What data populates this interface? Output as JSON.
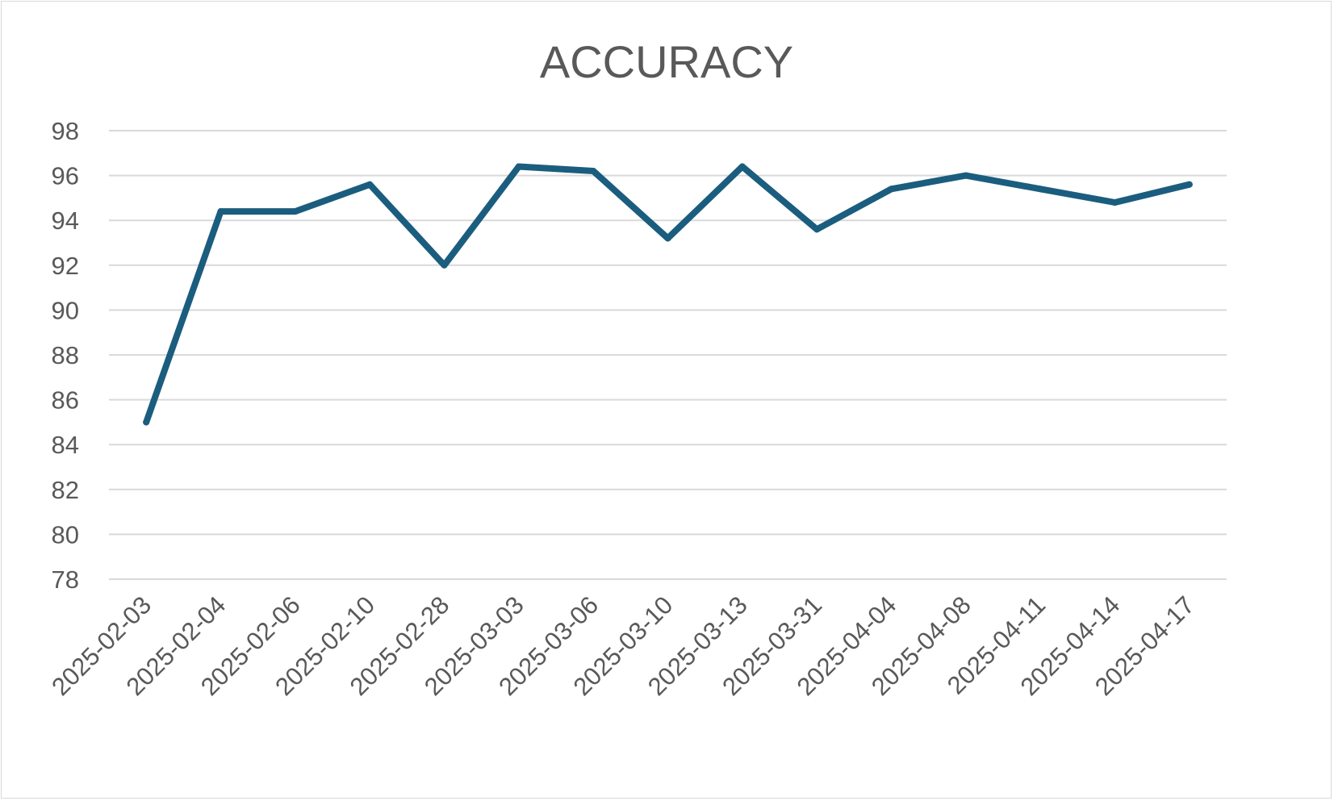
{
  "chart_data": {
    "type": "line",
    "title": "ACCURACY",
    "xlabel": "",
    "ylabel": "",
    "categories": [
      "2025-02-03",
      "2025-02-04",
      "2025-02-06",
      "2025-02-10",
      "2025-02-28",
      "2025-03-03",
      "2025-03-06",
      "2025-03-10",
      "2025-03-13",
      "2025-03-31",
      "2025-04-04",
      "2025-04-08",
      "2025-04-11",
      "2025-04-14",
      "2025-04-17"
    ],
    "series": [
      {
        "values": [
          85.0,
          94.4,
          94.4,
          95.6,
          92.0,
          96.4,
          96.2,
          93.2,
          96.4,
          93.6,
          95.4,
          96.0,
          95.4,
          94.8,
          95.6
        ]
      }
    ],
    "ylim": [
      78,
      98
    ],
    "yticks": [
      78,
      80,
      82,
      84,
      86,
      88,
      90,
      92,
      94,
      96,
      98
    ],
    "grid": true,
    "legend": "none",
    "colors": {
      "line": "#1b5d7e",
      "grid": "#d9d9d9",
      "text": "#595959"
    }
  }
}
